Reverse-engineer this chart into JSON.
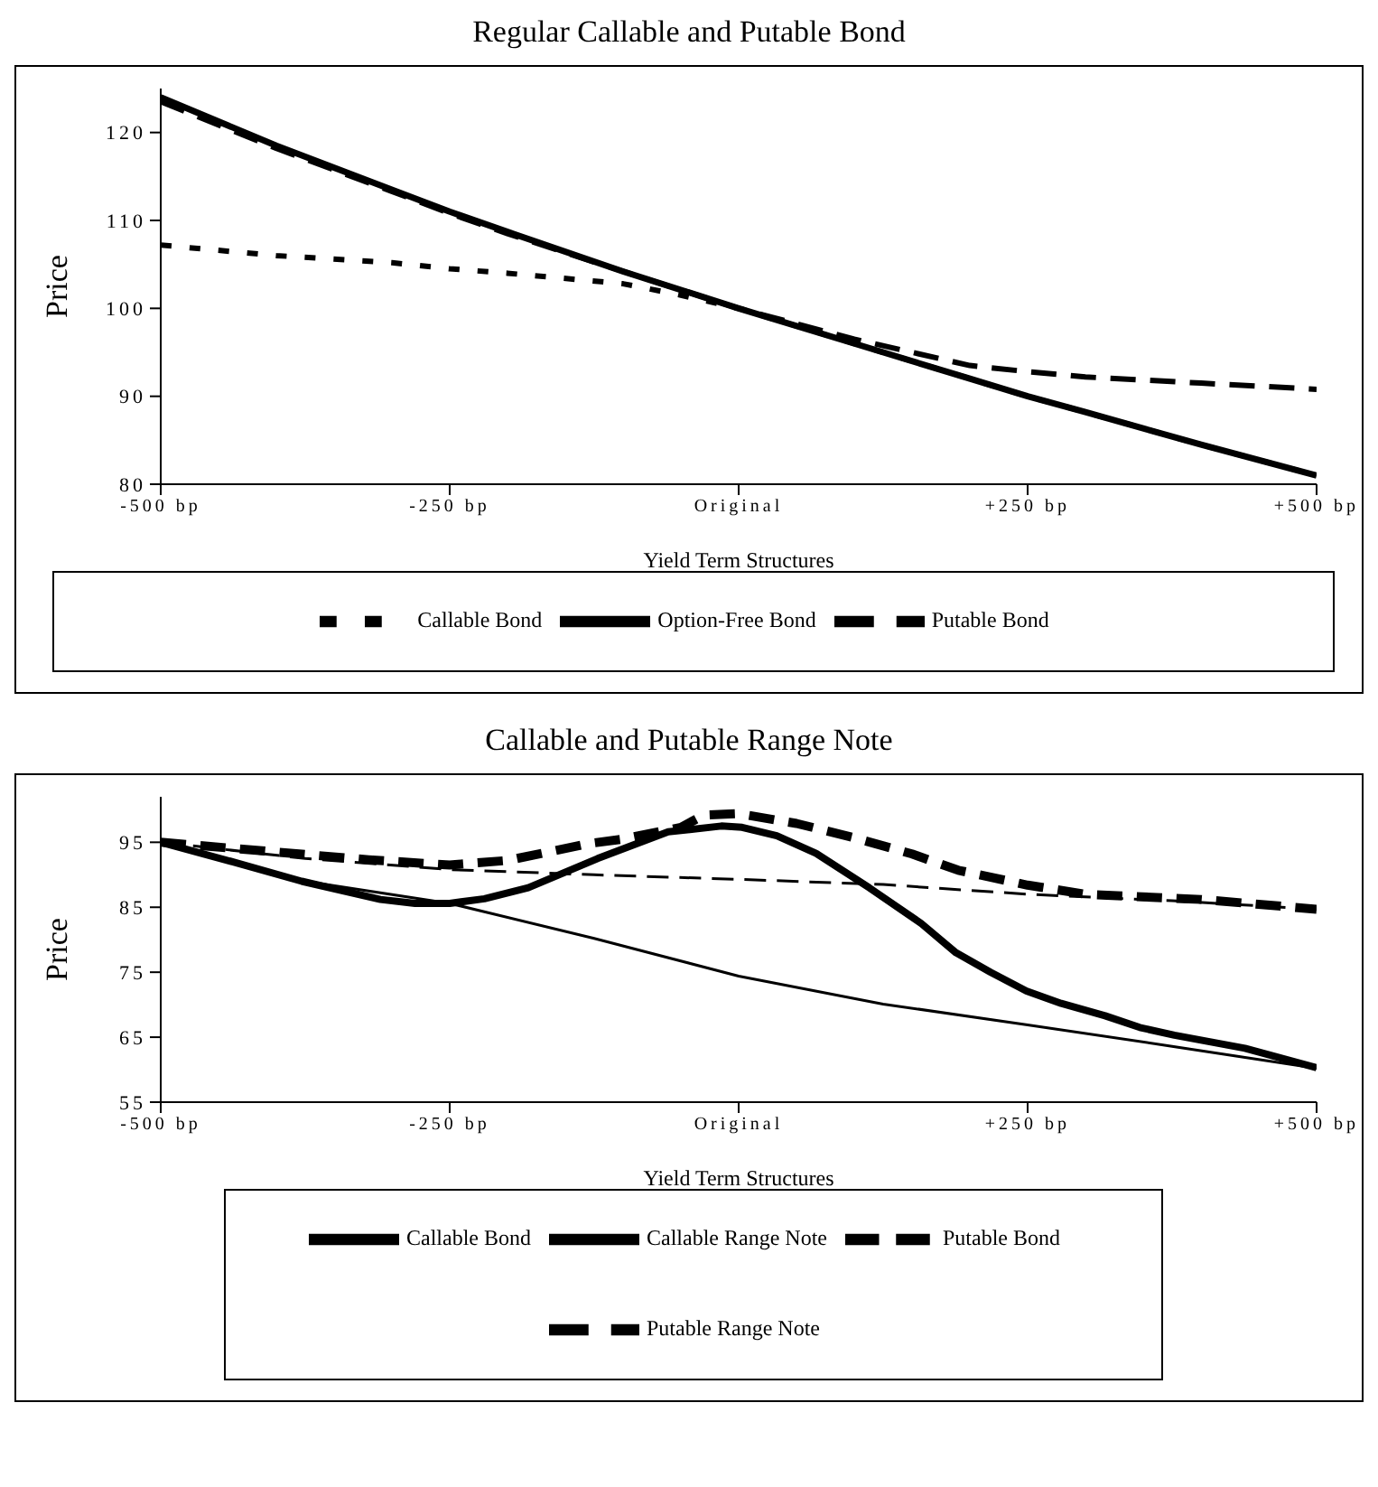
{
  "chart_data": [
    {
      "type": "line",
      "title": "Regular Callable and Putable Bond",
      "xlabel": "Yield Term Structures",
      "ylabel": "Price",
      "xlim": [
        -500,
        500
      ],
      "xticks": [
        {
          "value": -500,
          "label": "-500 bp"
        },
        {
          "value": -250,
          "label": "-250 bp"
        },
        {
          "value": 0,
          "label": "Original"
        },
        {
          "value": 250,
          "label": "+250 bp"
        },
        {
          "value": 500,
          "label": "+500 bp"
        }
      ],
      "ylim": [
        80,
        125
      ],
      "yticks": [
        80,
        90,
        100,
        110,
        120
      ],
      "grid": false,
      "legend": "bottom",
      "marker": "none",
      "series": [
        {
          "name": "Option-Free Bond",
          "color": "#000000",
          "line_style": "solid",
          "x": [
            -500,
            -400,
            -300,
            -250,
            -200,
            -100,
            0,
            100,
            200,
            250,
            300,
            400,
            500
          ],
          "values": [
            124,
            118.5,
            113.5,
            111,
            108.7,
            104.2,
            100,
            96,
            92,
            90,
            88.2,
            84.5,
            81
          ]
        },
        {
          "name": "Callable Bond",
          "color": "#000000",
          "line_style": "dotted",
          "x": [
            -500,
            -400,
            -300,
            -250,
            -200,
            -100,
            -50,
            0,
            100,
            200,
            250,
            300,
            400,
            500
          ],
          "values": [
            107.2,
            106,
            105.2,
            104.5,
            104,
            102.8,
            101.5,
            100,
            96,
            92,
            90,
            88.2,
            84.5,
            81
          ]
        },
        {
          "name": "Putable Bond",
          "color": "#000000",
          "line_style": "dashed",
          "x": [
            -500,
            -400,
            -300,
            -250,
            -200,
            -100,
            0,
            100,
            200,
            250,
            300,
            400,
            500
          ],
          "values": [
            123.5,
            118.2,
            113.3,
            110.8,
            108.5,
            104.2,
            100,
            96.5,
            93.5,
            92.8,
            92.2,
            91.5,
            90.8
          ]
        }
      ]
    },
    {
      "type": "line",
      "title": "Callable and Putable Range Note",
      "xlabel": "Yield Term Structures",
      "ylabel": "Price",
      "xlim": [
        -500,
        500
      ],
      "xticks": [
        {
          "value": -500,
          "label": "-500 bp"
        },
        {
          "value": -250,
          "label": "-250 bp"
        },
        {
          "value": 0,
          "label": "Original"
        },
        {
          "value": 250,
          "label": "+250 bp"
        },
        {
          "value": 500,
          "label": "+500 bp"
        }
      ],
      "ylim": [
        55,
        102
      ],
      "yticks": [
        55,
        65,
        75,
        85,
        95
      ],
      "grid": false,
      "legend": "bottom",
      "marker": "none",
      "series": [
        {
          "name": "Callable Range Note",
          "color": "#000000",
          "line_style": "solid",
          "x": [
            -500,
            -438,
            -378,
            -310,
            -280,
            -250,
            -220,
            -182,
            -122,
            -61,
            -15,
            3,
            33,
            67,
            113,
            158,
            188,
            218,
            249,
            279,
            317,
            347,
            377,
            438,
            500
          ],
          "values": [
            95,
            92,
            89,
            86.2,
            85.6,
            85.6,
            86.3,
            88,
            92.5,
            96.6,
            97.5,
            97.3,
            96,
            93.3,
            88,
            82.5,
            78,
            75,
            72.1,
            70.2,
            68.3,
            66.5,
            65.3,
            63.3,
            60.3
          ]
        },
        {
          "name": "Putable Range Note",
          "color": "#000000",
          "line_style": "dashed",
          "x": [
            -500,
            -400,
            -320,
            -250,
            -200,
            -130,
            -100,
            -50,
            -30,
            0,
            50,
            100,
            150,
            190,
            250,
            300,
            400,
            500
          ],
          "values": [
            95,
            93.5,
            92.3,
            91.5,
            92.2,
            94.8,
            95.5,
            97.3,
            99.2,
            99.4,
            97.9,
            95.7,
            93.2,
            90.7,
            88.4,
            87,
            86.2,
            84.7
          ]
        },
        {
          "name": "Callable Bond",
          "color": "#000000",
          "line_style": "solid",
          "x": [
            -500,
            -375,
            -250,
            -125,
            0,
            125,
            250,
            375,
            500
          ],
          "values": [
            95,
            89,
            85.6,
            80.2,
            74.4,
            70.1,
            66.9,
            63.6,
            60.2
          ]
        },
        {
          "name": "Putable Bond",
          "color": "#000000",
          "line_style": "dashed",
          "x": [
            -500,
            -375,
            -250,
            -125,
            0,
            125,
            250,
            375,
            500
          ],
          "values": [
            95,
            92.5,
            90.8,
            90,
            89.3,
            88.5,
            87,
            86,
            84.7
          ]
        }
      ]
    }
  ]
}
